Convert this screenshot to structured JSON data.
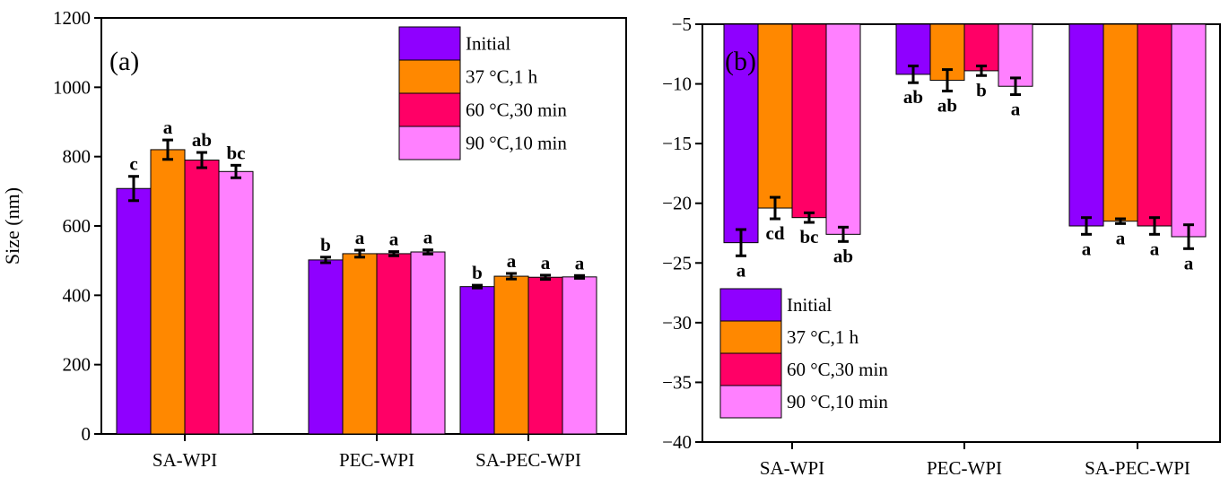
{
  "colors": {
    "Initial": "#8f00ff",
    "37 °C,1 h": "#ff8800",
    "60 °C,30 min": "#ff0066",
    "90 °C,10 min": "#ff80ff"
  },
  "chart_data": [
    {
      "type": "bar",
      "panel_label": "(a)",
      "title": "",
      "xlabel": "",
      "ylabel": "Size (nm)",
      "ylim": [
        0,
        1200
      ],
      "yticks": [
        0,
        200,
        400,
        600,
        800,
        1000,
        1200
      ],
      "categories": [
        "SA-WPI",
        "PEC-WPI",
        "SA-PEC-WPI"
      ],
      "legend_position": "top-right",
      "series": [
        {
          "name": "Initial",
          "values": [
            708,
            502,
            425
          ],
          "errors": [
            35,
            8,
            4
          ],
          "letters": [
            "c",
            "b",
            "b"
          ]
        },
        {
          "name": "37 °C,1 h",
          "values": [
            820,
            520,
            455
          ],
          "errors": [
            28,
            10,
            8
          ],
          "letters": [
            "a",
            "a",
            "a"
          ]
        },
        {
          "name": "60 °C,30 min",
          "values": [
            790,
            520,
            452
          ],
          "errors": [
            22,
            6,
            6
          ],
          "letters": [
            "ab",
            "a",
            "a"
          ]
        },
        {
          "name": "90 °C,10 min",
          "values": [
            757,
            525,
            453
          ],
          "errors": [
            18,
            6,
            4
          ],
          "letters": [
            "bc",
            "a",
            "a"
          ]
        }
      ]
    },
    {
      "type": "bar",
      "panel_label": "(b)",
      "title": "",
      "xlabel": "",
      "ylabel": "",
      "ylim": [
        -40,
        -5
      ],
      "yticks": [
        -40,
        -35,
        -30,
        -25,
        -20,
        -15,
        -10,
        -5
      ],
      "baseline": -5,
      "categories": [
        "SA-WPI",
        "PEC-WPI",
        "SA-PEC-WPI"
      ],
      "legend_position": "bottom-left",
      "series": [
        {
          "name": "Initial",
          "values": [
            -23.3,
            -9.2,
            -21.9
          ],
          "errors": [
            1.1,
            0.7,
            0.7
          ],
          "letters": [
            "a",
            "ab",
            "a"
          ]
        },
        {
          "name": "37 °C,1 h",
          "values": [
            -20.4,
            -9.7,
            -21.5
          ],
          "errors": [
            0.9,
            0.9,
            0.2
          ],
          "letters": [
            "cd",
            "ab",
            "a"
          ]
        },
        {
          "name": "60 °C,30 min",
          "values": [
            -21.2,
            -8.9,
            -21.9
          ],
          "errors": [
            0.4,
            0.4,
            0.7
          ],
          "letters": [
            "bc",
            "b",
            "a"
          ]
        },
        {
          "name": "90 °C,10 min",
          "values": [
            -22.6,
            -10.2,
            -22.8
          ],
          "errors": [
            0.6,
            0.7,
            1.0
          ],
          "letters": [
            "ab",
            "a",
            "a"
          ]
        }
      ]
    }
  ]
}
